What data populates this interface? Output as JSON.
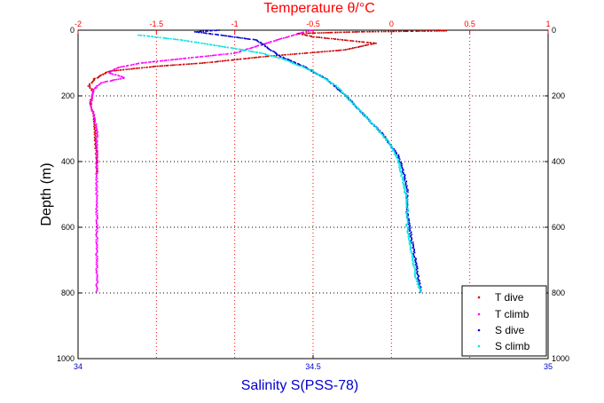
{
  "chart_data": {
    "type": "scatter",
    "title": "",
    "top_axis": {
      "label": "Temperature θ/°C",
      "range": [
        -2,
        1
      ],
      "ticks": [
        -2,
        -1.5,
        -1,
        -0.5,
        0,
        0.5,
        1
      ],
      "tick_labels": [
        "-2",
        "-1.5",
        "-1",
        "-0.5",
        "0",
        "0.5",
        "1"
      ],
      "color": "#ff0000"
    },
    "bottom_axis": {
      "label": "Salinity S(PSS-78)",
      "range": [
        34,
        35
      ],
      "ticks": [
        34,
        34.5,
        35
      ],
      "tick_labels": [
        "34",
        "34.5",
        "35"
      ],
      "color": "#0000cc"
    },
    "y_axis": {
      "label": "Depth (m)",
      "range": [
        0,
        1000
      ],
      "inverted": true,
      "ticks": [
        0,
        200,
        400,
        600,
        800,
        1000
      ],
      "tick_labels": [
        "0",
        "200",
        "400",
        "600",
        "800",
        "1000"
      ]
    },
    "grid": true,
    "legend_position": "bottom-right",
    "series": [
      {
        "name": "T dive",
        "axis": "temperature",
        "color": "#cc0000",
        "points": [
          [
            0.3,
            0
          ],
          [
            0.35,
            2
          ],
          [
            -0.2,
            5
          ],
          [
            -0.6,
            10
          ],
          [
            -0.5,
            20
          ],
          [
            -0.1,
            40
          ],
          [
            -0.3,
            60
          ],
          [
            -0.8,
            80
          ],
          [
            -1.2,
            100
          ],
          [
            -1.5,
            110
          ],
          [
            -1.8,
            125
          ],
          [
            -1.9,
            150
          ],
          [
            -1.93,
            170
          ],
          [
            -1.9,
            190
          ],
          [
            -1.92,
            220
          ],
          [
            -1.9,
            260
          ],
          [
            -1.89,
            320
          ],
          [
            -1.88,
            400
          ],
          [
            -1.88,
            440
          ]
        ]
      },
      {
        "name": "T climb",
        "axis": "temperature",
        "color": "#ff00ff",
        "points": [
          [
            -0.5,
            0
          ],
          [
            -0.55,
            5
          ],
          [
            -0.8,
            40
          ],
          [
            -1.0,
            70
          ],
          [
            -1.3,
            85
          ],
          [
            -1.6,
            100
          ],
          [
            -1.75,
            115
          ],
          [
            -1.8,
            130
          ],
          [
            -1.7,
            145
          ],
          [
            -1.85,
            160
          ],
          [
            -1.9,
            180
          ],
          [
            -1.92,
            220
          ],
          [
            -1.9,
            260
          ],
          [
            -1.88,
            300
          ],
          [
            -1.88,
            400
          ],
          [
            -1.88,
            500
          ],
          [
            -1.88,
            600
          ],
          [
            -1.88,
            700
          ],
          [
            -1.88,
            800
          ]
        ]
      },
      {
        "name": "S dive",
        "axis": "salinity",
        "color": "#0000cc",
        "points": [
          [
            34.3,
            0
          ],
          [
            34.25,
            5
          ],
          [
            34.38,
            30
          ],
          [
            34.43,
            80
          ],
          [
            34.48,
            110
          ],
          [
            34.53,
            150
          ],
          [
            34.57,
            200
          ],
          [
            34.61,
            260
          ],
          [
            34.65,
            320
          ],
          [
            34.68,
            380
          ],
          [
            34.69,
            420
          ],
          [
            34.7,
            480
          ],
          [
            34.7,
            560
          ],
          [
            34.71,
            640
          ],
          [
            34.72,
            720
          ],
          [
            34.73,
            800
          ]
        ]
      },
      {
        "name": "S climb",
        "axis": "salinity",
        "color": "#00e5e5",
        "points": [
          [
            34.13,
            15
          ],
          [
            34.22,
            30
          ],
          [
            34.33,
            55
          ],
          [
            34.39,
            70
          ],
          [
            34.44,
            90
          ],
          [
            34.5,
            125
          ],
          [
            34.55,
            170
          ],
          [
            34.59,
            230
          ],
          [
            34.63,
            290
          ],
          [
            34.66,
            340
          ],
          [
            34.68,
            390
          ],
          [
            34.69,
            450
          ],
          [
            34.7,
            520
          ],
          [
            34.7,
            600
          ],
          [
            34.71,
            680
          ],
          [
            34.72,
            760
          ],
          [
            34.73,
            800
          ]
        ]
      }
    ]
  }
}
